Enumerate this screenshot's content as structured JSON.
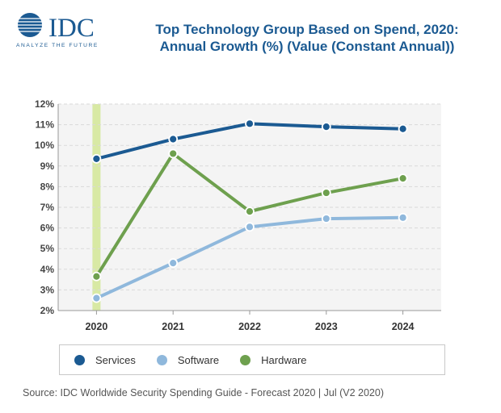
{
  "logo": {
    "brand": "IDC",
    "tagline": "ANALYZE THE FUTURE",
    "color": "#1b5a92"
  },
  "chart_data": {
    "type": "line",
    "title": "Top Technology Group Based on Spend, 2020:",
    "subtitle": "Annual Growth (%) (Value (Constant Annual))",
    "x": [
      "2020",
      "2021",
      "2022",
      "2023",
      "2024"
    ],
    "ylim": [
      2,
      12
    ],
    "yticks": [
      "2%",
      "3%",
      "4%",
      "5%",
      "6%",
      "7%",
      "8%",
      "9%",
      "10%",
      "11%",
      "12%"
    ],
    "grid": true,
    "highlight_category": "2020",
    "legend_position": "bottom",
    "series": [
      {
        "name": "Services",
        "color": "#1b5a92",
        "values": [
          9.35,
          10.3,
          11.05,
          10.9,
          10.8
        ]
      },
      {
        "name": "Software",
        "color": "#8fb8dc",
        "values": [
          2.6,
          4.3,
          6.05,
          6.45,
          6.5
        ]
      },
      {
        "name": "Hardware",
        "color": "#6ea04e",
        "values": [
          3.65,
          9.6,
          6.8,
          7.7,
          8.4
        ]
      }
    ]
  },
  "source": "Source: IDC Worldwide Security Spending Guide - Forecast 2020 | Jul (V2 2020)"
}
